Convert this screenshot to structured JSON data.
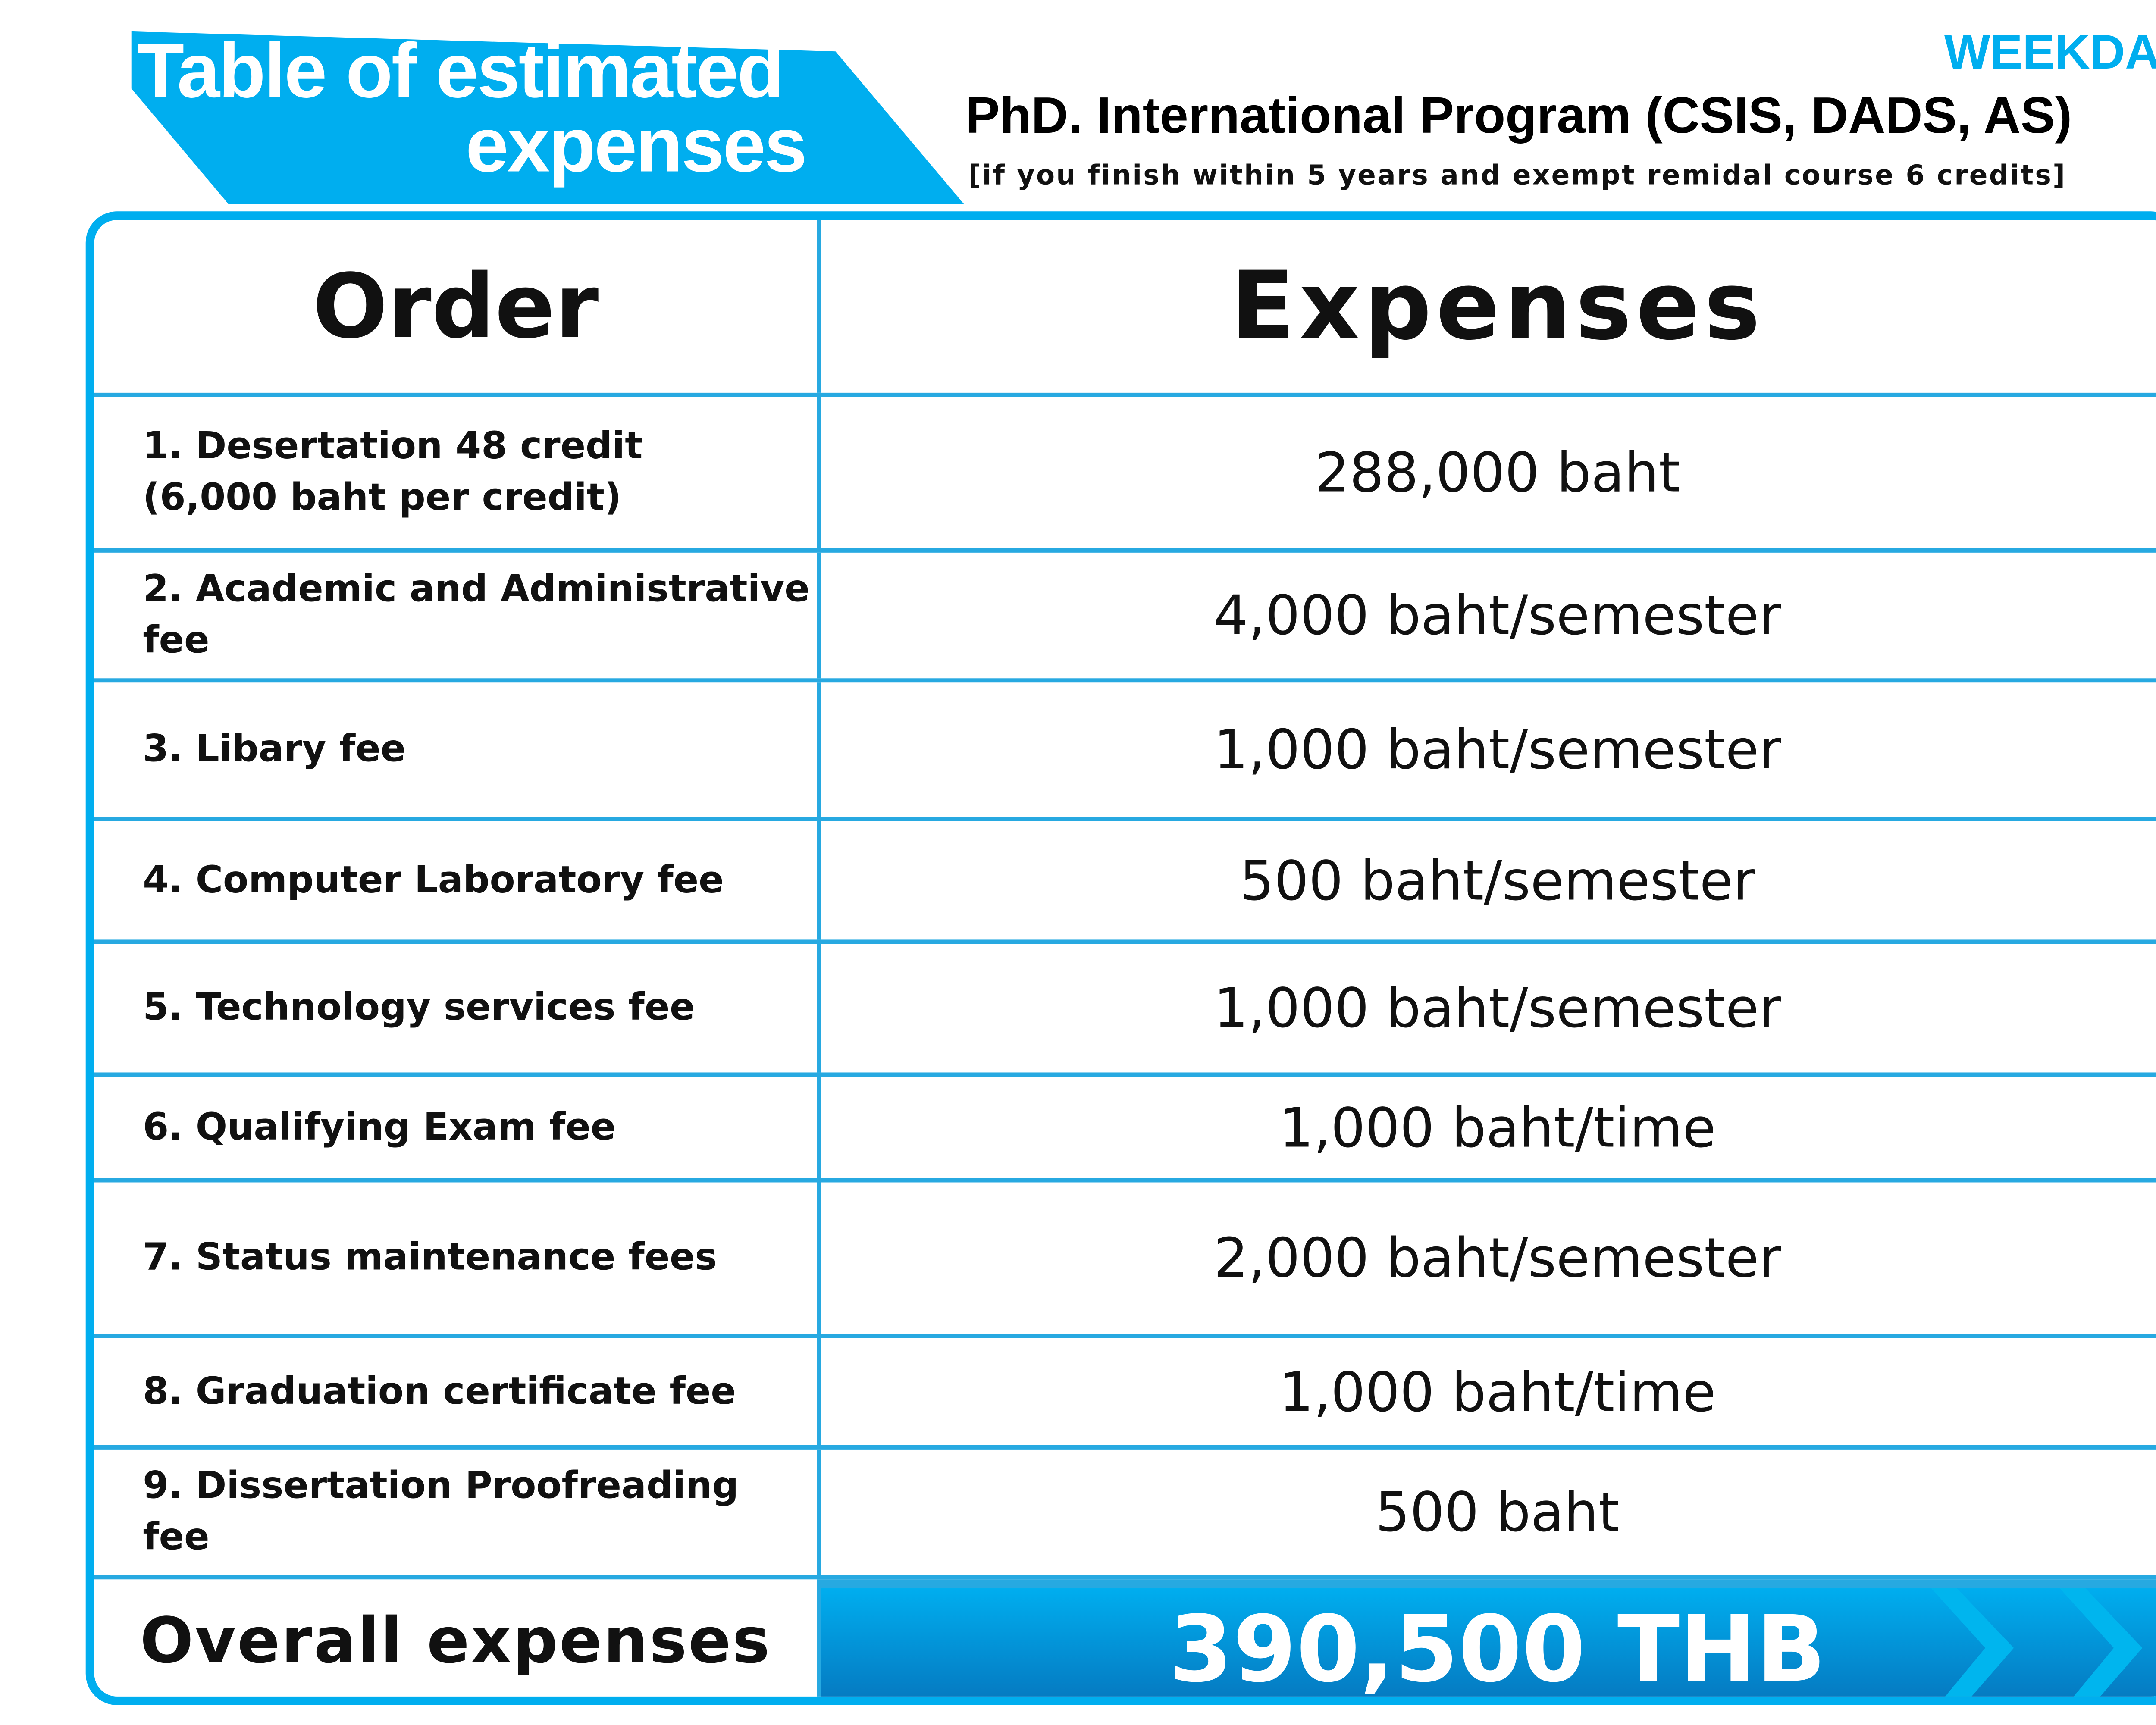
{
  "header": {
    "title_line1": "Table of estimated",
    "title_line2": "expenses",
    "schedule": "WEEKDAY",
    "program": "PhD. International Program (CSIS, DADS, AS)",
    "condition": "[if you finish within 5 years and exempt remidal course 6 credits]"
  },
  "table": {
    "col_order": "Order",
    "col_expenses": "Expenses",
    "rows": [
      {
        "order_line1": "1. Desertation 48 credit",
        "order_line2": "(6,000 baht per credit)",
        "expense": "288,000 baht"
      },
      {
        "order_line1": "2. Academic and Administrative fee",
        "expense": "4,000 baht/semester"
      },
      {
        "order_line1": "3. Libary fee",
        "expense": "1,000 baht/semester"
      },
      {
        "order_line1": "4. Computer Laboratory fee",
        "expense": "500 baht/semester"
      },
      {
        "order_line1": "5. Technology services fee",
        "expense": "1,000 baht/semester"
      },
      {
        "order_line1": "6. Qualifying Exam fee",
        "expense": "1,000 baht/time"
      },
      {
        "order_line1": "7. Status maintenance fees",
        "expense": "2,000 baht/semester"
      },
      {
        "order_line1": "8. Graduation certificate fee",
        "expense": "1,000 baht/time"
      },
      {
        "order_line1": "9. Dissertation Proofreading fee",
        "expense": "500 baht"
      }
    ],
    "total_label": "Overall expenses",
    "total_value": "390,500 THB"
  },
  "colors": {
    "accent": "#00aeef",
    "accent_dark": "#0673bb"
  }
}
